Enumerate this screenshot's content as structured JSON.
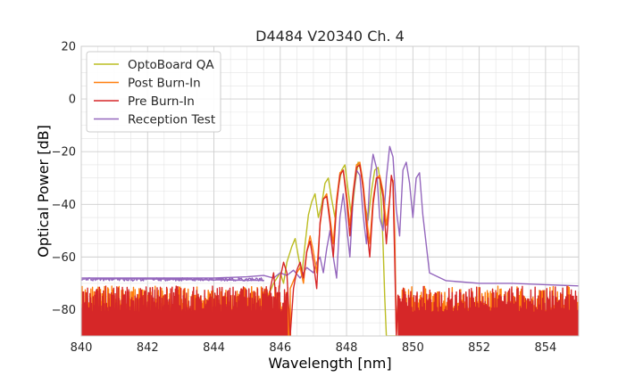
{
  "chart_data": {
    "type": "line",
    "title": "D4484 V20340 Ch. 4",
    "xlabel": "Wavelength [nm]",
    "ylabel": "Optical Power [dB]",
    "xlim": [
      840,
      855
    ],
    "ylim": [
      -90,
      20
    ],
    "xticks": [
      840,
      842,
      844,
      846,
      848,
      850,
      852,
      854
    ],
    "xtick_labels": [
      "840",
      "842",
      "844",
      "846",
      "848",
      "850",
      "852",
      "854"
    ],
    "yticks": [
      20,
      0,
      -20,
      -40,
      -60,
      -80
    ],
    "ytick_labels": [
      "20",
      "0",
      "−20",
      "−40",
      "−60",
      "−80"
    ],
    "grid": true,
    "legend_position": "top-left",
    "series": [
      {
        "name": "OptoBoard QA",
        "color": "#bcbd22",
        "noise_floor_range": [
          840,
          845.6
        ],
        "noise_level": -90,
        "x": [
          845.6,
          845.8,
          846.0,
          846.1,
          846.2,
          846.35,
          846.45,
          846.55,
          846.65,
          846.75,
          846.85,
          846.95,
          847.05,
          847.15,
          847.25,
          847.35,
          847.45,
          847.55,
          847.65,
          847.75,
          847.85,
          847.95,
          848.05,
          848.15,
          848.25,
          848.35,
          848.45,
          848.55,
          848.65,
          848.75,
          848.85,
          848.95,
          849.0,
          849.05,
          849.1,
          849.15,
          849.2,
          849.25,
          849.3
        ],
        "y": [
          -76,
          -70,
          -66,
          -70,
          -62,
          -56,
          -53,
          -60,
          -67,
          -55,
          -44,
          -39,
          -36,
          -45,
          -40,
          -32,
          -30,
          -38,
          -45,
          -34,
          -27,
          -25,
          -35,
          -45,
          -33,
          -24,
          -28,
          -40,
          -46,
          -35,
          -27,
          -26,
          -30,
          -40,
          -55,
          -75,
          -90,
          -90,
          -90
        ]
      },
      {
        "name": "Post Burn-In",
        "color": "#ff7f0e",
        "noise_floor_range": [
          840,
          846.3
        ],
        "noise_level": -78,
        "x": [
          846.3,
          846.5,
          846.6,
          846.7,
          846.8,
          846.9,
          847.0,
          847.1,
          847.2,
          847.3,
          847.4,
          847.5,
          847.6,
          847.7,
          847.8,
          847.9,
          848.0,
          848.1,
          848.2,
          848.3,
          848.4,
          848.5,
          848.6,
          848.7,
          848.8,
          848.9,
          849.0,
          849.1,
          849.2,
          849.3,
          849.35,
          849.4,
          849.45,
          849.5
        ],
        "y": [
          -72,
          -66,
          -64,
          -70,
          -58,
          -52,
          -58,
          -66,
          -48,
          -38,
          -36,
          -45,
          -55,
          -38,
          -28,
          -27,
          -36,
          -48,
          -35,
          -25,
          -24,
          -32,
          -45,
          -55,
          -38,
          -30,
          -29,
          -35,
          -48,
          -38,
          -30,
          -31,
          -50,
          -90
        ]
      },
      {
        "name": "Pre Burn-In",
        "color": "#d62728",
        "noise_floor_range": [
          840,
          846.2
        ],
        "noise_level": -78,
        "x": [
          845.6,
          845.7,
          845.8,
          845.9,
          846.0,
          846.1,
          846.2,
          846.3,
          846.4,
          846.5,
          846.6,
          846.7,
          846.8,
          846.9,
          847.0,
          847.1,
          847.2,
          847.3,
          847.4,
          847.5,
          847.6,
          847.7,
          847.8,
          847.9,
          848.0,
          848.1,
          848.2,
          848.3,
          848.4,
          848.5,
          848.6,
          848.7,
          848.8,
          848.9,
          849.0,
          849.1,
          849.2,
          849.3,
          849.35,
          849.4,
          849.45,
          849.5
        ],
        "y": [
          -90,
          -72,
          -66,
          -80,
          -68,
          -62,
          -66,
          -90,
          -72,
          -65,
          -62,
          -68,
          -58,
          -54,
          -62,
          -72,
          -47,
          -38,
          -37,
          -47,
          -60,
          -40,
          -29,
          -27,
          -38,
          -52,
          -36,
          -26,
          -25,
          -34,
          -48,
          -60,
          -40,
          -30,
          -30,
          -37,
          -55,
          -38,
          -29,
          -32,
          -60,
          -90
        ]
      },
      {
        "name": "Reception Test",
        "color": "#9467bd",
        "noise_floor_range": [
          840,
          845.5
        ],
        "noise_level": -68.5,
        "x": [
          840.0,
          842.0,
          844.0,
          845.0,
          845.5,
          845.8,
          846.0,
          846.2,
          846.4,
          846.6,
          846.8,
          847.0,
          847.1,
          847.2,
          847.3,
          847.4,
          847.5,
          847.6,
          847.7,
          847.8,
          847.9,
          848.0,
          848.1,
          848.2,
          848.3,
          848.4,
          848.5,
          848.6,
          848.7,
          848.8,
          848.9,
          849.0,
          849.1,
          849.2,
          849.3,
          849.4,
          849.5,
          849.6,
          849.7,
          849.8,
          849.9,
          850.0,
          850.1,
          850.2,
          850.3,
          850.5,
          851.0,
          852.0,
          853.0,
          854.0,
          855.0
        ],
        "y": [
          -68,
          -68,
          -68,
          -67.5,
          -67,
          -68,
          -66,
          -67,
          -65,
          -68,
          -64,
          -66,
          -62,
          -60,
          -66,
          -57,
          -50,
          -60,
          -68,
          -45,
          -36,
          -48,
          -60,
          -37,
          -27,
          -29,
          -44,
          -55,
          -31,
          -21,
          -26,
          -45,
          -50,
          -30,
          -18,
          -22,
          -42,
          -52,
          -27,
          -24,
          -32,
          -45,
          -30,
          -28,
          -44,
          -66,
          -69,
          -70,
          -70,
          -70.5,
          -71
        ]
      }
    ]
  }
}
